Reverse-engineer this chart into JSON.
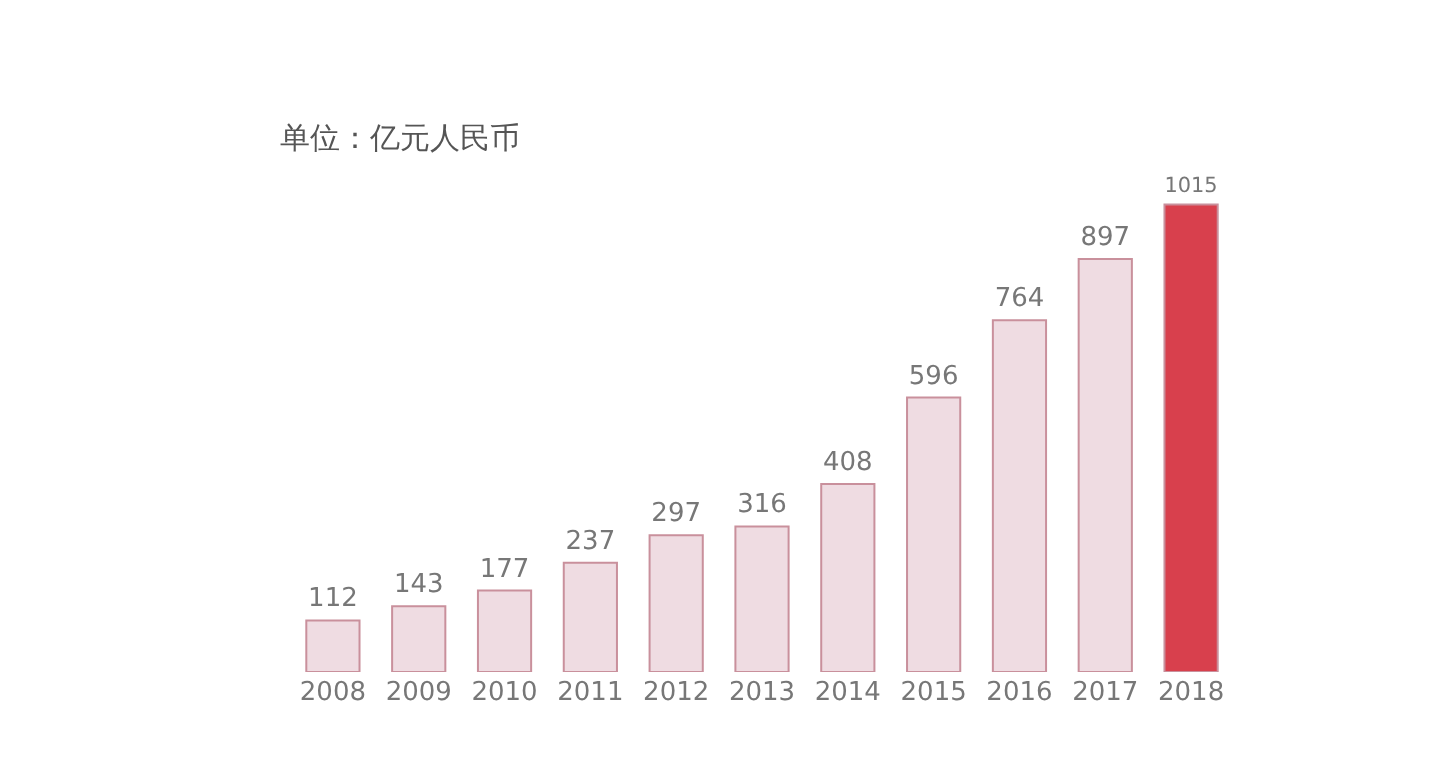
{
  "chart_data": {
    "type": "bar",
    "title": "单位：亿元人民币",
    "categories": [
      "2008",
      "2009",
      "2010",
      "2011",
      "2012",
      "2013",
      "2014",
      "2015",
      "2016",
      "2017",
      "2018"
    ],
    "values": [
      112,
      143,
      177,
      237,
      297,
      316,
      408,
      596,
      764,
      897,
      1015
    ],
    "colors": [
      "#efdce2",
      "#efdce2",
      "#efdce2",
      "#efdce2",
      "#efdce2",
      "#efdce2",
      "#efdce2",
      "#efdce2",
      "#efdce2",
      "#efdce2",
      "#d8404d"
    ],
    "data_labels": true
  }
}
